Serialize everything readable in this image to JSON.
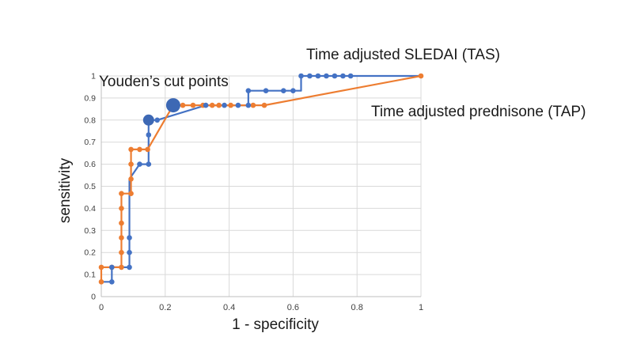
{
  "chart_data": {
    "type": "line",
    "title": "",
    "xlabel": "1 - specificity",
    "ylabel": "sensitivity",
    "xlim": [
      0,
      1
    ],
    "ylim": [
      0,
      1
    ],
    "grid": true,
    "legend_position": "none",
    "x_tick_values": [
      0,
      0.2,
      0.4,
      0.6,
      0.8,
      1
    ],
    "x_tick_labels": [
      "0",
      "0.2",
      "0.4",
      "0.6",
      "0.8",
      "1"
    ],
    "y_tick_values": [
      0,
      0.1,
      0.2,
      0.3,
      0.4,
      0.5,
      0.6,
      0.7,
      0.8,
      0.9,
      1
    ],
    "y_tick_labels": [
      "0",
      "0.1",
      "0.2",
      "0.3",
      "0.4",
      "0.5",
      "0.6",
      "0.7",
      "0.8",
      "0.9",
      "1"
    ],
    "series": [
      {
        "name": "Time adjusted SLEDAI (TAS)",
        "short_name": "TAS",
        "color": "#4472C4",
        "line": [
          [
            0,
            0.067
          ],
          [
            0.033,
            0.067
          ],
          [
            0.033,
            0.133
          ],
          [
            0.088,
            0.133
          ],
          [
            0.088,
            0.533
          ],
          [
            0.12,
            0.6
          ],
          [
            0.148,
            0.6
          ],
          [
            0.148,
            0.8
          ],
          [
            0.175,
            0.8
          ],
          [
            0.327,
            0.867
          ],
          [
            0.46,
            0.867
          ],
          [
            0.46,
            0.933
          ],
          [
            0.625,
            0.933
          ],
          [
            0.625,
            1
          ],
          [
            1,
            1
          ]
        ],
        "markers": [
          [
            0.033,
            0.067
          ],
          [
            0.033,
            0.133
          ],
          [
            0.088,
            0.133
          ],
          [
            0.088,
            0.2
          ],
          [
            0.088,
            0.267
          ],
          [
            0.12,
            0.6
          ],
          [
            0.148,
            0.6
          ],
          [
            0.148,
            0.733
          ],
          [
            0.175,
            0.8
          ],
          [
            0.327,
            0.867
          ],
          [
            0.385,
            0.867
          ],
          [
            0.428,
            0.867
          ],
          [
            0.46,
            0.867
          ],
          [
            0.46,
            0.933
          ],
          [
            0.515,
            0.933
          ],
          [
            0.57,
            0.933
          ],
          [
            0.6,
            0.933
          ],
          [
            0.625,
            1
          ],
          [
            0.652,
            1
          ],
          [
            0.678,
            1
          ],
          [
            0.704,
            1
          ],
          [
            0.73,
            1
          ],
          [
            0.756,
            1
          ],
          [
            0.78,
            1
          ]
        ]
      },
      {
        "name": "Time adjusted prednisone (TAP)",
        "short_name": "TAP",
        "color": "#ED7D31",
        "line": [
          [
            0,
            0.067
          ],
          [
            0,
            0.133
          ],
          [
            0.063,
            0.133
          ],
          [
            0.063,
            0.467
          ],
          [
            0.093,
            0.467
          ],
          [
            0.093,
            0.667
          ],
          [
            0.145,
            0.667
          ],
          [
            0.225,
            0.867
          ],
          [
            0.51,
            0.867
          ],
          [
            1,
            1
          ]
        ],
        "markers": [
          [
            0,
            0.067
          ],
          [
            0,
            0.133
          ],
          [
            0.033,
            0.133
          ],
          [
            0.063,
            0.133
          ],
          [
            0.063,
            0.2
          ],
          [
            0.063,
            0.267
          ],
          [
            0.063,
            0.333
          ],
          [
            0.063,
            0.4
          ],
          [
            0.063,
            0.467
          ],
          [
            0.093,
            0.467
          ],
          [
            0.093,
            0.533
          ],
          [
            0.093,
            0.6
          ],
          [
            0.093,
            0.667
          ],
          [
            0.12,
            0.667
          ],
          [
            0.145,
            0.667
          ],
          [
            0.255,
            0.867
          ],
          [
            0.287,
            0.867
          ],
          [
            0.318,
            0.867
          ],
          [
            0.347,
            0.867
          ],
          [
            0.368,
            0.867
          ],
          [
            0.405,
            0.867
          ],
          [
            0.475,
            0.867
          ],
          [
            0.51,
            0.867
          ],
          [
            1,
            1
          ]
        ]
      }
    ],
    "youden_cut_points": [
      {
        "series": "TAS",
        "x": 0.148,
        "y": 0.8,
        "r": 7
      },
      {
        "series": "TAP",
        "x": 0.225,
        "y": 0.867,
        "r": 9
      }
    ],
    "annotations": [
      {
        "id": "tas_label",
        "text": "Time adjusted SLEDAI (TAS)"
      },
      {
        "id": "tap_label",
        "text": "Time adjusted prednisone (TAP)"
      },
      {
        "id": "youden_label",
        "text": "Youden’s cut points"
      }
    ],
    "colors": {
      "tas_blue": "#4472C4",
      "tap_orange": "#ED7D31",
      "youden_dot": "#3D68B4",
      "gridline": "#D9D9D9",
      "axis_line": "#BFBFBF",
      "tick_text": "#404040",
      "text": "#1A1A1A"
    }
  }
}
